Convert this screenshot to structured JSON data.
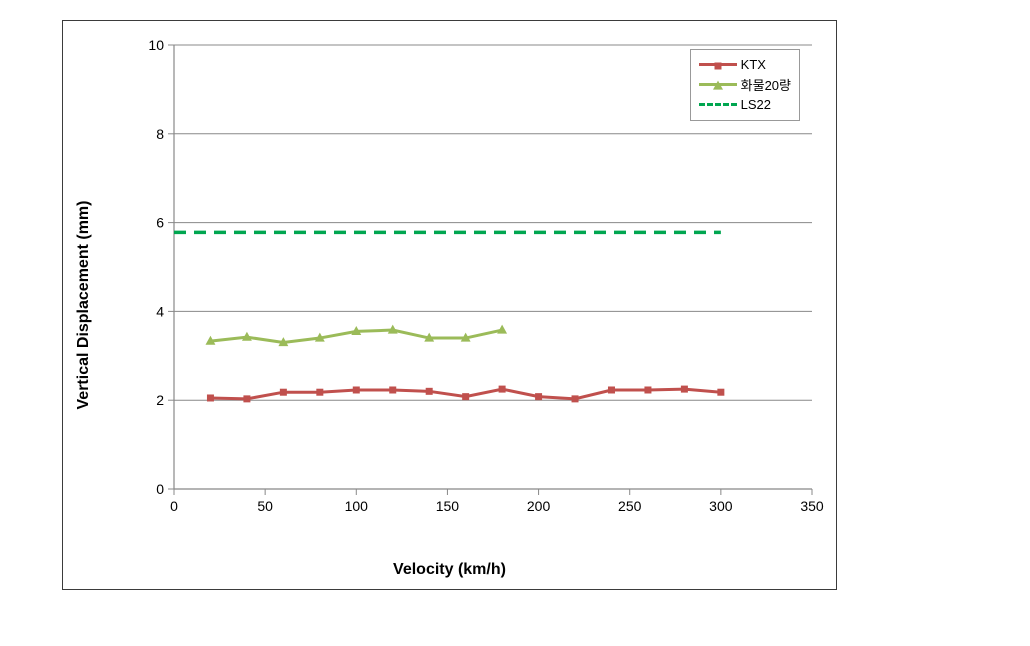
{
  "chart": {
    "type": "line",
    "xlabel": "Velocity (km/h)",
    "ylabel": "Vertical Displacement (mm)",
    "label_fontsize": 16,
    "xlim": [
      0,
      350
    ],
    "ylim": [
      0,
      10
    ],
    "xtick_step": 50,
    "ytick_step": 2,
    "background_color": "#ffffff",
    "border_color": "#3b3b3b",
    "grid_color": "#888888",
    "tick_color": "#888888",
    "tick_font_color": "#000000",
    "tick_fontsize": 14,
    "series": [
      {
        "name": "KTX",
        "label": "KTX",
        "color": "#c0504d",
        "line_width": 3,
        "marker": "square",
        "marker_size": 7,
        "dash": "solid",
        "x": [
          20,
          40,
          60,
          80,
          100,
          120,
          140,
          160,
          180,
          200,
          220,
          240,
          260,
          280,
          300
        ],
        "y": [
          2.05,
          2.03,
          2.18,
          2.18,
          2.23,
          2.23,
          2.2,
          2.08,
          2.25,
          2.08,
          2.03,
          2.23,
          2.23,
          2.25,
          2.18
        ]
      },
      {
        "name": "freight20",
        "label": "화물20량",
        "color": "#9bbb59",
        "line_width": 3,
        "marker": "triangle",
        "marker_size": 9,
        "dash": "solid",
        "x": [
          20,
          40,
          60,
          80,
          100,
          120,
          140,
          160,
          180
        ],
        "y": [
          3.33,
          3.42,
          3.3,
          3.4,
          3.55,
          3.58,
          3.4,
          3.4,
          3.58
        ]
      },
      {
        "name": "LS22",
        "label": "LS22",
        "color": "#00a650",
        "line_width": 3.5,
        "marker": "none",
        "dash": "dashed",
        "x": [
          0,
          300
        ],
        "y": [
          5.78,
          5.78
        ]
      }
    ],
    "legend": {
      "position": "top-right",
      "border_color": "#999999",
      "background_color": "#ffffff",
      "fontsize": 13
    }
  }
}
